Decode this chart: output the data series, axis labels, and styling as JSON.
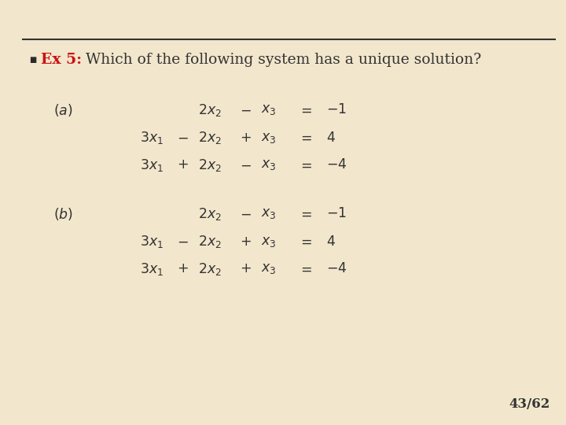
{
  "background_color": "#f2e6cc",
  "title_red": "Ex 5:",
  "title_black": " Which of the following system has a unique solution?",
  "bullet_color": "#2b2b2b",
  "red_color": "#cc1111",
  "text_color": "#333333",
  "slide_number": "43/62",
  "fig_width": 7.2,
  "fig_height": 5.4,
  "dpi": 100
}
